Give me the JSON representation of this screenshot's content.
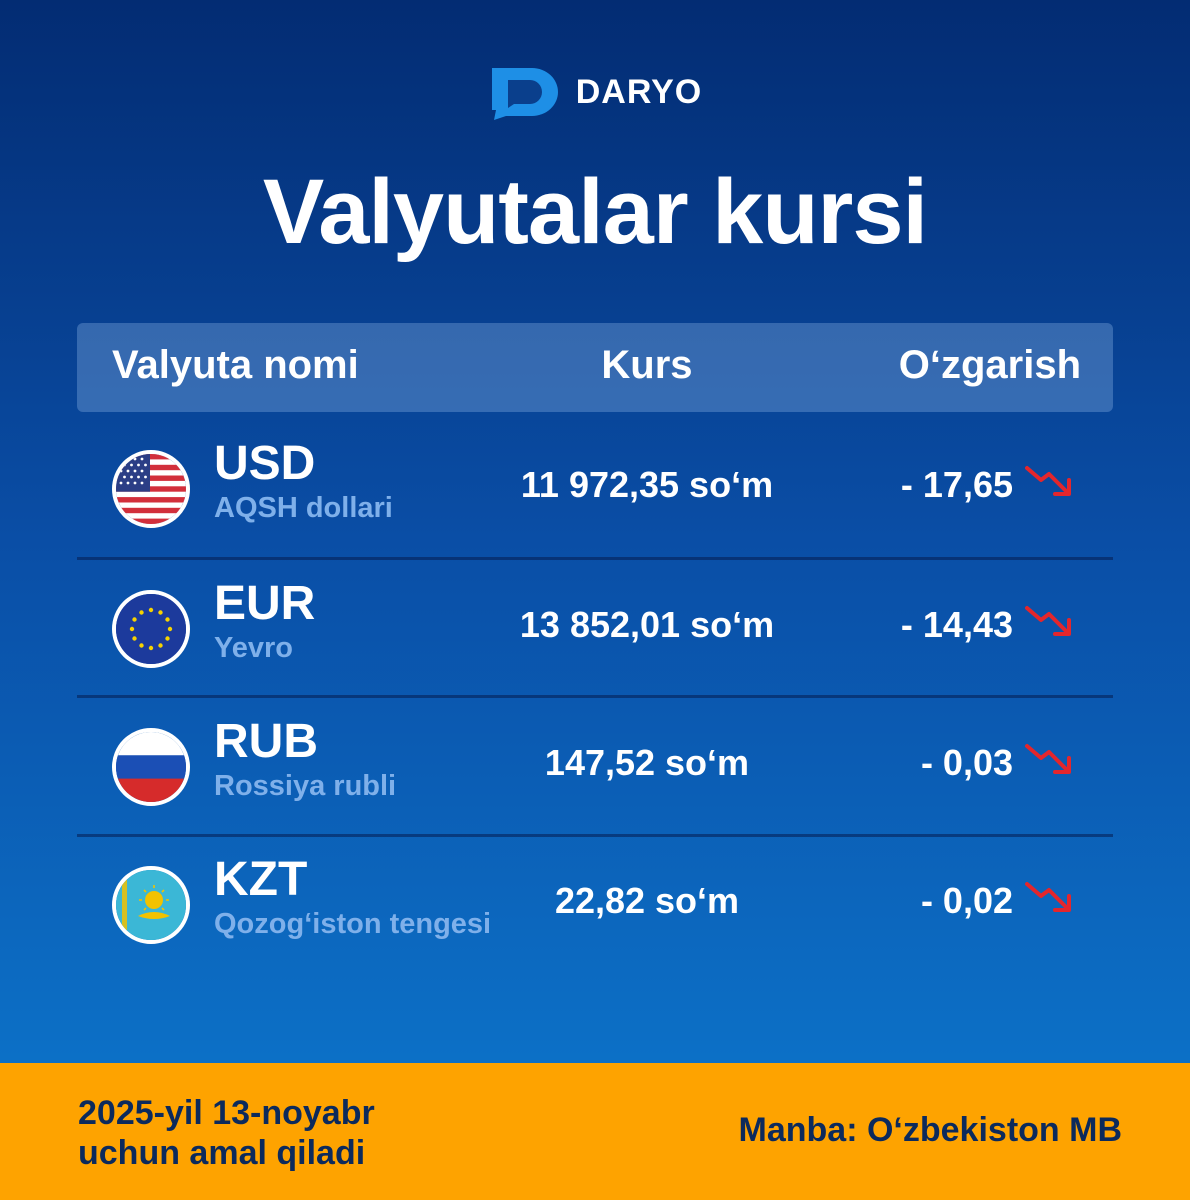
{
  "brand": {
    "name": "DARYO"
  },
  "title": "Valyutalar kursi",
  "table": {
    "headers": {
      "name": "Valyuta nomi",
      "rate": "Kurs",
      "change": "O‘zgarish"
    },
    "rows": [
      {
        "code": "USD",
        "name": "AQSH dollari",
        "rate": "11 972,35 so‘m",
        "change": "- 17,65",
        "trend": "down",
        "flag_icon": "us-flag-icon"
      },
      {
        "code": "EUR",
        "name": "Yevro",
        "rate": "13 852,01 so‘m",
        "change": "- 14,43",
        "trend": "down",
        "flag_icon": "eu-flag-icon"
      },
      {
        "code": "RUB",
        "name": "Rossiya rubli",
        "rate": "147,52 so‘m",
        "change": "- 0,03",
        "trend": "down",
        "flag_icon": "ru-flag-icon"
      },
      {
        "code": "KZT",
        "name": "Qozog‘iston tengesi",
        "rate": "22,82 so‘m",
        "change": "- 0,02",
        "trend": "down",
        "flag_icon": "kz-flag-icon"
      }
    ]
  },
  "footer": {
    "date_line1": "2025-yil 13-noyabr",
    "date_line2": "uchun amal qiladi",
    "source": "Manba: O‘zbekiston MB"
  },
  "colors": {
    "background_top": "#032c73",
    "background_bottom": "#0d79cf",
    "footer": "#fea300",
    "footer_text": "#0c2a5c",
    "trend_down": "#e4262c",
    "subtitle": "#7fb0ea"
  }
}
